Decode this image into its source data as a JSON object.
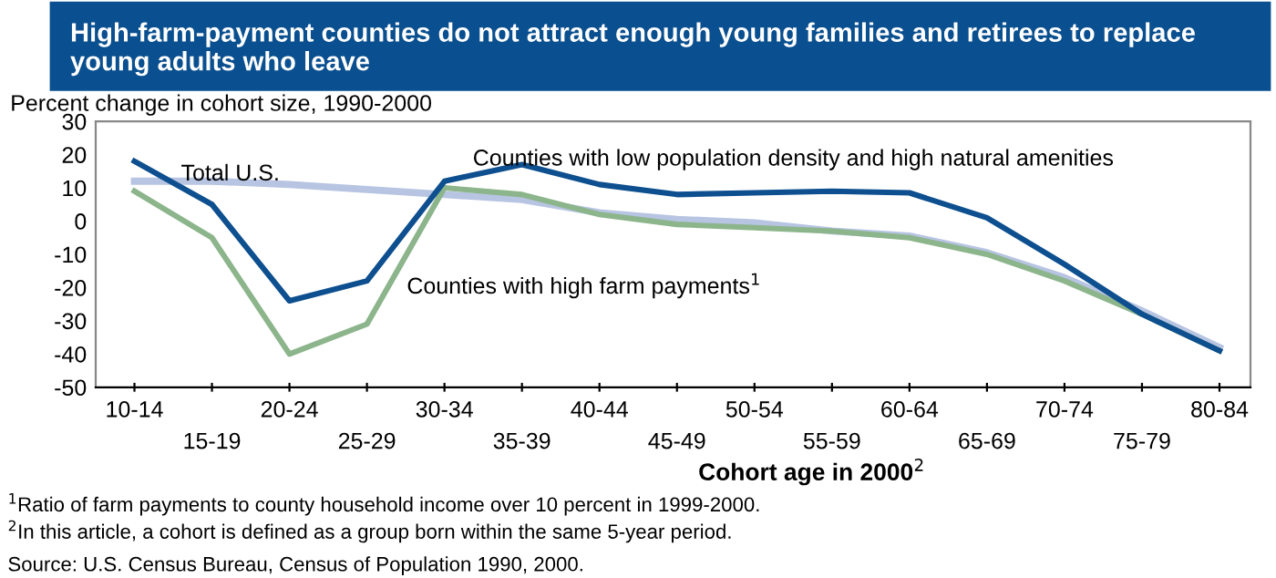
{
  "chart_data": {
    "type": "line",
    "title": "High-farm-payment counties do not attract enough young families and retirees to replace young adults who leave",
    "ylabel": "Percent change in cohort size, 1990-2000",
    "xlabel": "Cohort age in 2000$^{2}$",
    "categories": [
      "10-14",
      "15-19",
      "20-24",
      "25-29",
      "30-34",
      "35-39",
      "40-44",
      "45-49",
      "50-54",
      "55-59",
      "60-64",
      "65-69",
      "70-74",
      "75-79",
      "80-84"
    ],
    "series": [
      {
        "name": "Total U.S.",
        "color": "#b7c4e2",
        "values": [
          12,
          12,
          11,
          9.5,
          8,
          6.5,
          2.5,
          0.5,
          -0.5,
          -3,
          -4.5,
          -9.5,
          -17,
          -27,
          -38
        ]
      },
      {
        "name": "Counties with high farm payments$^{1}$",
        "color": "#8cb58c",
        "values": [
          9,
          -5,
          -40,
          -31,
          10,
          8,
          2,
          -1,
          -2,
          -3,
          -5,
          -10,
          -18,
          -28,
          -39
        ]
      },
      {
        "name": "Counties with low population density and high natural amenities",
        "color": "#0d4f8f",
        "values": [
          18,
          5,
          -24,
          -18,
          12,
          17,
          11,
          8,
          8.5,
          9,
          8.5,
          1,
          -13,
          -28,
          -39
        ]
      }
    ],
    "ylim": [
      -50,
      30
    ],
    "yticks": [
      -50,
      -40,
      -30,
      -20,
      -10,
      0,
      10,
      20,
      30
    ],
    "grid": false,
    "legend": false,
    "marker": "none",
    "line_style": "solid",
    "annotations": [
      "$^{1}$Ratio of farm payments to county household income over 10 percent in 1999-2000.",
      "$^{2}$In this article, a cohort is defined as a group born within the same 5-year period.",
      "Source: U.S. Census Bureau, Census of Population 1990, 2000."
    ]
  }
}
